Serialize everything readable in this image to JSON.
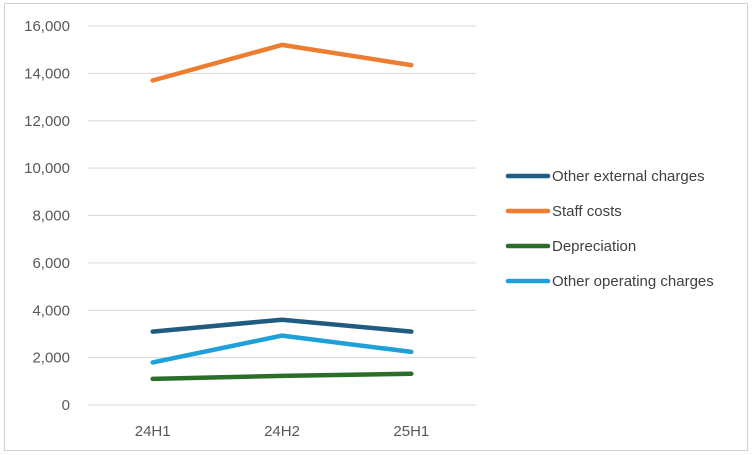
{
  "chart_data": {
    "type": "line",
    "categories": [
      "24H1",
      "24H2",
      "25H1"
    ],
    "ylim": [
      0,
      16000
    ],
    "yticks": [
      0,
      2000,
      4000,
      6000,
      8000,
      10000,
      12000,
      14000,
      16000
    ],
    "ytick_labels": [
      "0",
      "2,000",
      "4,000",
      "6,000",
      "8,000",
      "10,000",
      "12,000",
      "14,000",
      "16,000"
    ],
    "grid": true,
    "legend_position": "right",
    "series": [
      {
        "name": "Other external charges",
        "values": [
          3100,
          3600,
          3100
        ],
        "color": "#1f5c80"
      },
      {
        "name": "Staff costs",
        "values": [
          13700,
          15200,
          14350
        ],
        "color": "#ed7d31"
      },
      {
        "name": "Depreciation",
        "values": [
          1100,
          1230,
          1320
        ],
        "color": "#2a6e2a"
      },
      {
        "name": "Other operating charges",
        "values": [
          1800,
          2930,
          2240
        ],
        "color": "#1ea0d8"
      }
    ]
  }
}
